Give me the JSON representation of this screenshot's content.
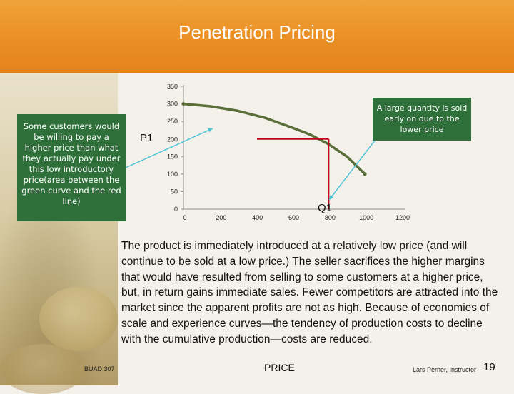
{
  "slide": {
    "title": "Penetration Pricing",
    "body": "The product is immediately introduced at a relatively low price (and will continue to be sold at a low price.) The seller sacrifices the higher margins that would have resulted from selling to some customers at a higher price, but, in return gains immediate sales.  Fewer competitors are attracted into the market since the apparent profits are not as high. Because of economies of scale and experience curves—the tendency of production costs to decline with the cumulative production—costs are reduced.",
    "footer_course": "BUAD 307",
    "footer_center": "PRICE",
    "footer_author": "Lars Perner, Instructor",
    "page_number": "19"
  },
  "callouts": {
    "left": "Some customers would be willing to pay a higher price than what they actually pay under this low introductory price(area between the green curve and the red line)",
    "right": "A large quantity is sold early on due to the lower price"
  },
  "colors": {
    "header": "#ea8f24",
    "callout_bg": "#2f6f3a",
    "demand_curve": "#5a6e3a",
    "price_line": "#c0001a",
    "arrow": "#4fc3d8"
  },
  "chart_data": {
    "type": "line",
    "xlim": [
      0,
      1200
    ],
    "ylim": [
      0,
      350
    ],
    "x_ticks": [
      "0",
      "200",
      "400",
      "600",
      "800",
      "1000",
      "1200"
    ],
    "y_ticks": [
      "0",
      "50",
      "100",
      "150",
      "250",
      "300",
      "350"
    ],
    "y_tick_values": [
      0,
      50,
      100,
      150,
      250,
      300,
      350
    ],
    "price_label": "P1",
    "quantity_label": "Q1",
    "price_value": 200,
    "quantity_value": 800,
    "extra_y_tick": "200",
    "series": [
      {
        "x": [
          0,
          150,
          300,
          450,
          600,
          700,
          800,
          900,
          1000
        ],
        "y": [
          300,
          293,
          280,
          260,
          232,
          212,
          185,
          150,
          100
        ]
      }
    ]
  }
}
